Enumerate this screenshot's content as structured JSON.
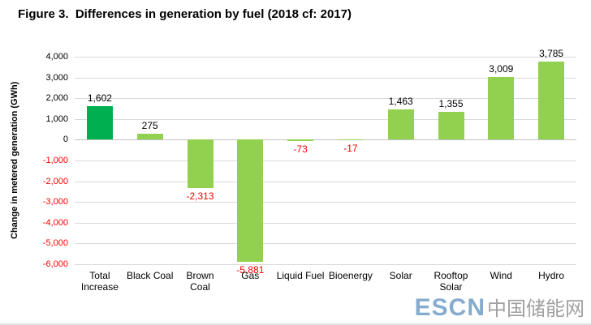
{
  "header": {
    "title": "Figure 3.  Differences in generation by fuel (2018 cf: 2017)"
  },
  "chart_data": {
    "type": "bar",
    "title": "Figure 3.  Differences in generation by fuel (2018 cf: 2017)",
    "xlabel": "",
    "ylabel": "Change in metered generation (GWh)",
    "ylim": [
      -6000,
      4000
    ],
    "yticks": [
      4000,
      3000,
      2000,
      1000,
      0,
      -1000,
      -2000,
      -3000,
      -4000,
      -5000,
      -6000
    ],
    "ytick_labels": [
      "4,000",
      "3,000",
      "2,000",
      "1,000",
      "0",
      "-1,000",
      "-2,000",
      "-3,000",
      "-4,000",
      "-5,000",
      "-6,000"
    ],
    "categories": [
      "Total Increase",
      "Black Coal",
      "Brown Coal",
      "Gas",
      "Liquid Fuel",
      "Bioenergy",
      "Solar",
      "Rooftop Solar",
      "Wind",
      "Hydro"
    ],
    "values": [
      1602,
      275,
      -2313,
      -5881,
      -73,
      -17,
      1463,
      1355,
      3009,
      3785
    ],
    "value_labels": [
      "1,602",
      "275",
      "-2,313",
      "-5,881",
      "-73",
      "-17",
      "1,463",
      "1,355",
      "3,009",
      "3,785"
    ],
    "grid": true,
    "legend": "none",
    "colors": {
      "highlight_bar": "#00B050",
      "bar": "#92D050",
      "positive_label": "#000000",
      "negative_label": "#FF0000",
      "negative_tick": "#FF0000",
      "gridline": "#D9D9D9"
    }
  },
  "watermark": {
    "logo": "ESCN",
    "text": "中国储能网",
    "logo_color": "#7FA8CC",
    "text_color": "#9B9B9B"
  }
}
